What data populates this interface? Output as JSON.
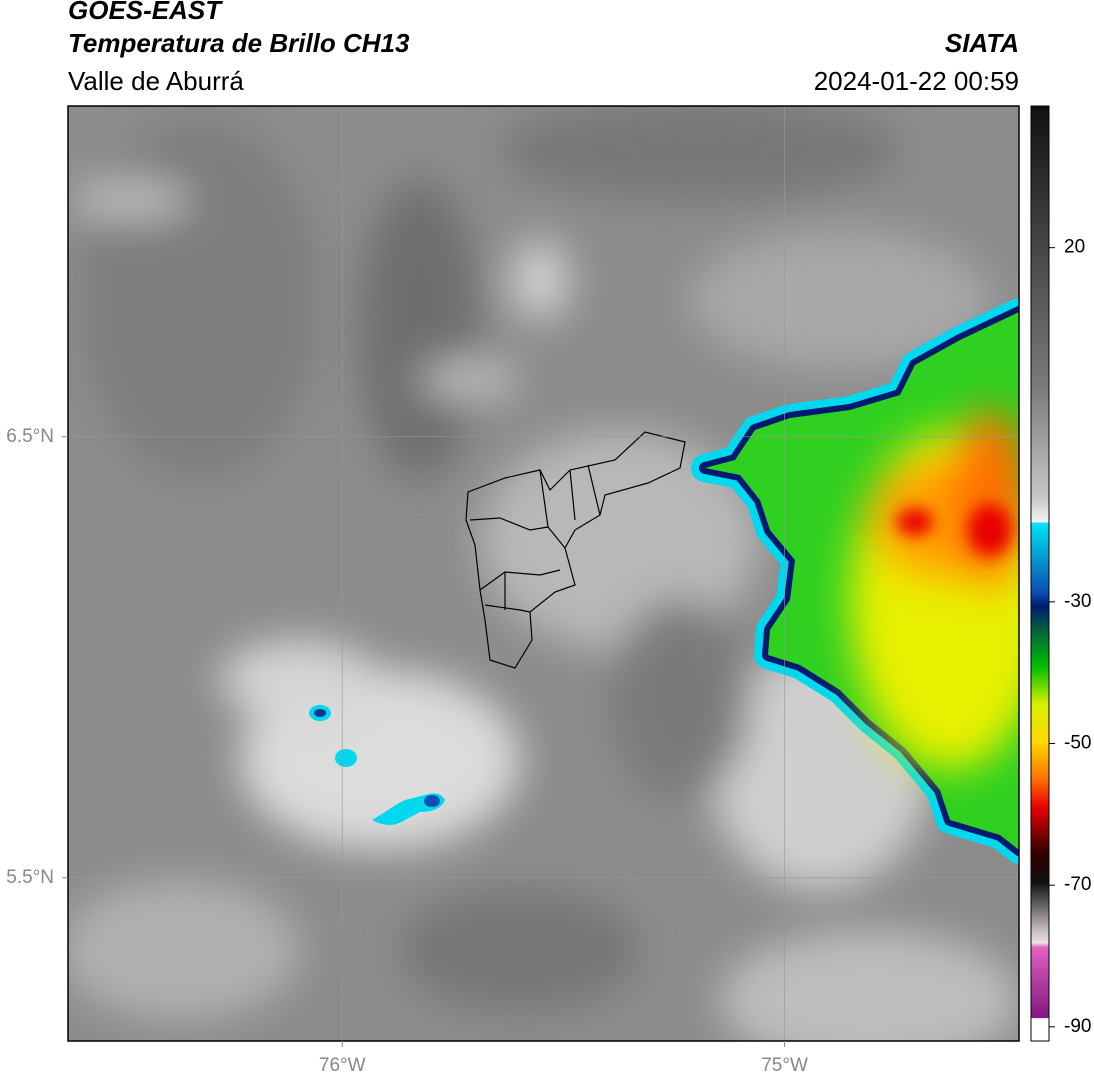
{
  "header": {
    "title": "GOES-EAST",
    "subtitle": "Temperatura de Brillo CH13",
    "source": "SIATA",
    "region": "Valle de Aburrá",
    "datetime": "2024-01-22 00:59"
  },
  "map": {
    "xlim": [
      -76.62,
      -74.47
    ],
    "ylim": [
      5.13,
      7.25
    ],
    "xticks": [
      {
        "value": -76,
        "label": "76°W"
      },
      {
        "value": -75,
        "label": "75°W"
      }
    ],
    "yticks": [
      {
        "value": 6.5,
        "label": "6.5°N"
      },
      {
        "value": 5.5,
        "label": "5.5°N"
      }
    ]
  },
  "colorbar": {
    "lim": [
      -92,
      40
    ],
    "ticks": [
      20,
      -30,
      -50,
      -70,
      -90
    ]
  }
}
